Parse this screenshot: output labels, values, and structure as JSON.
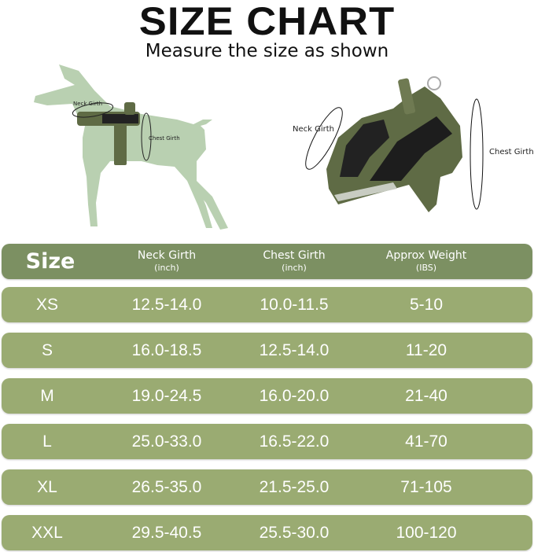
{
  "title": "SIZE CHART",
  "subtitle": "Measure the size as shown",
  "illustration": {
    "dog_neck_label": "Neck Girth",
    "dog_chest_label": "Chest Girth",
    "harness_neck_label": "Neck Girth",
    "harness_chest_label": "Chest Girth"
  },
  "colors": {
    "header": "#7c9062",
    "row": "#9aab72",
    "dog": "#b9d0b1",
    "harness": "#5f6b45"
  },
  "table": {
    "headers": [
      {
        "label": "Size",
        "unit": ""
      },
      {
        "label": "Neck Girth",
        "unit": "(inch)"
      },
      {
        "label": "Chest Girth",
        "unit": "(inch)"
      },
      {
        "label": "Approx Weight",
        "unit": "(IBS)"
      }
    ],
    "rows": [
      [
        "XS",
        "12.5-14.0",
        "10.0-11.5",
        "5-10"
      ],
      [
        "S",
        "16.0-18.5",
        "12.5-14.0",
        "11-20"
      ],
      [
        "M",
        "19.0-24.5",
        "16.0-20.0",
        "21-40"
      ],
      [
        "L",
        "25.0-33.0",
        "16.5-22.0",
        "41-70"
      ],
      [
        "XL",
        "26.5-35.0",
        "21.5-25.0",
        "71-105"
      ],
      [
        "XXL",
        "29.5-40.5",
        "25.5-30.0",
        "100-120"
      ]
    ]
  }
}
